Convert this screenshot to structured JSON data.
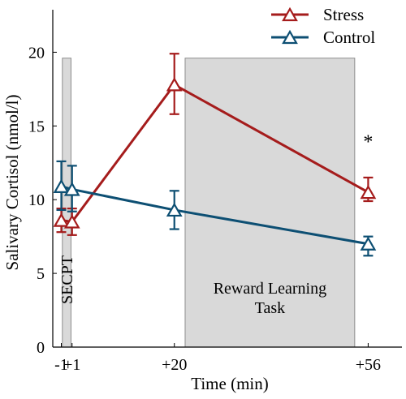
{
  "chart_data": {
    "type": "line",
    "xlabel": "Time (min)",
    "ylabel": "Salivary Cortisol (nmol/l)",
    "ylim": [
      0,
      23
    ],
    "xlim": [
      -4,
      60
    ],
    "x_ticks": [
      -1,
      1,
      20,
      56
    ],
    "x_tick_labels": [
      "-1",
      "+1",
      "+20",
      "+56"
    ],
    "y_ticks": [
      0,
      5,
      10,
      15,
      20
    ],
    "y_tick_labels": [
      "0",
      "5",
      "10",
      "15",
      "20"
    ],
    "grid": false,
    "legend_position": "top-right",
    "series": [
      {
        "name": "Stress",
        "color": "#a51c1c",
        "marker": "triangle",
        "x": [
          -1,
          1,
          20,
          56
        ],
        "y": [
          8.6,
          8.5,
          17.8,
          10.5
        ],
        "err_lower": [
          0.8,
          0.9,
          2.0,
          0.6
        ],
        "err_upper": [
          0.8,
          0.9,
          2.1,
          1.0
        ]
      },
      {
        "name": "Control",
        "color": "#0d4f73",
        "marker": "triangle",
        "x": [
          -1,
          1,
          20,
          56
        ],
        "y": [
          10.9,
          10.7,
          9.3,
          7.0
        ],
        "err_lower": [
          1.6,
          1.5,
          1.3,
          0.8
        ],
        "err_upper": [
          1.7,
          1.6,
          1.3,
          0.5
        ]
      }
    ],
    "shaded_regions": [
      {
        "label": "SECPT",
        "x_start": -0.8,
        "x_end": 0.8,
        "y_top": 19.6,
        "orientation": "vertical"
      },
      {
        "label_line1": "Reward Learning",
        "label_line2": "Task",
        "x_start": 22,
        "x_end": 53.5,
        "y_top": 19.6,
        "orientation": "horizontal"
      }
    ],
    "annotations": [
      {
        "text": "*",
        "x": 20,
        "y": 23.8
      },
      {
        "text": "*",
        "x": 56,
        "y": 13.5
      }
    ]
  }
}
